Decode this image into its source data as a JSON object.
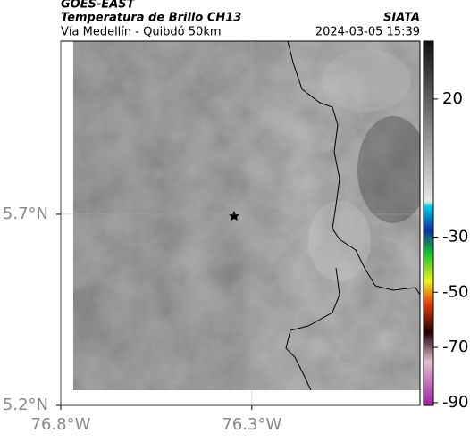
{
  "header": {
    "source": "GOES-EAST",
    "title": "Temperatura de Brillo CH13",
    "subtitle": "Vía Medellín - Quibdó 50km",
    "org": "SIATA",
    "timestamp": "2024-03-05 15:39"
  },
  "map": {
    "lonlim": [
      -76.8,
      -75.86
    ],
    "latlim": [
      5.2,
      6.153
    ],
    "lon_ticks": [
      {
        "value": -76.8,
        "label": "76.8°W"
      },
      {
        "value": -76.3,
        "label": "76.3°W"
      }
    ],
    "lat_ticks": [
      {
        "value": 5.7,
        "label": "5.7°N"
      },
      {
        "value": 5.2,
        "label": "5.2°N"
      }
    ],
    "colorbar": {
      "lim": [
        -91,
        41
      ],
      "ticks": [
        20,
        -30,
        -50,
        -70,
        -90
      ]
    }
  }
}
